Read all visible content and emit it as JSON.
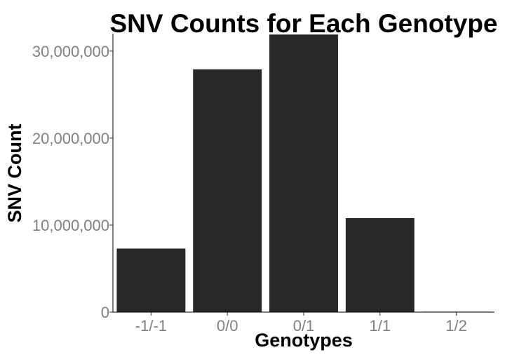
{
  "chart_data": {
    "type": "bar",
    "title": "SNV Counts for Each Genotype",
    "xlabel": "Genotypes",
    "ylabel": "SNV Count",
    "categories": [
      "-1/-1",
      "0/0",
      "0/1",
      "1/1",
      "1/2"
    ],
    "values": [
      7300000,
      27900000,
      31900000,
      10800000,
      50000
    ],
    "ylim": [
      0,
      32000000
    ],
    "yticks": [
      0,
      10000000,
      20000000,
      30000000
    ],
    "ytick_labels": [
      "0",
      "10,000,000",
      "20,000,000",
      "30,000,000"
    ],
    "grid": false,
    "legend": "none",
    "bar_color": "#282828"
  }
}
